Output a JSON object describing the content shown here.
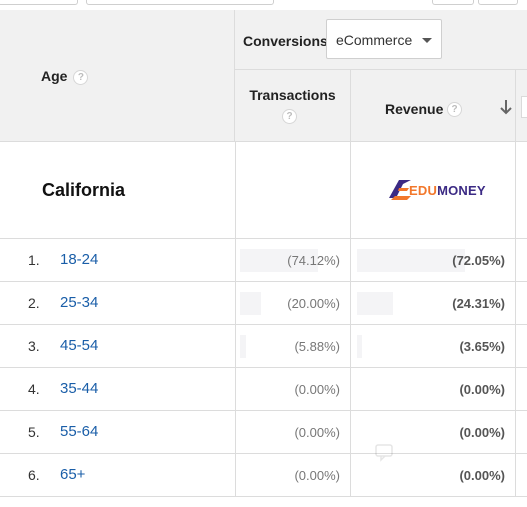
{
  "header": {
    "age_label": "Age",
    "conversions_label": "Conversions",
    "conversions_select": {
      "value": "eCommerce"
    },
    "transactions_label": "Transactions",
    "revenue_label": "Revenue",
    "help_glyph": "?",
    "sort_icon": "arrow-down-icon"
  },
  "summary": {
    "name": "California",
    "logo": {
      "edu": "EDU",
      "money": "MONEY",
      "edu_color": "#f2772b",
      "money_color": "#3b2a84"
    }
  },
  "rows": [
    {
      "rank": "1.",
      "age": "18-24",
      "transactions": "(74.12%)",
      "revenue": "(72.05%)",
      "revenue_share": 0.7205,
      "transactions_share": 0.7412
    },
    {
      "rank": "2.",
      "age": "25-34",
      "transactions": "(20.00%)",
      "revenue": "(24.31%)",
      "revenue_share": 0.2431,
      "transactions_share": 0.2
    },
    {
      "rank": "3.",
      "age": "45-54",
      "transactions": "(5.88%)",
      "revenue": "(3.65%)",
      "revenue_share": 0.0365,
      "transactions_share": 0.0588
    },
    {
      "rank": "4.",
      "age": "35-44",
      "transactions": "(0.00%)",
      "revenue": "(0.00%)",
      "revenue_share": 0,
      "transactions_share": 0
    },
    {
      "rank": "5.",
      "age": "55-64",
      "transactions": "(0.00%)",
      "revenue": "(0.00%)",
      "revenue_share": 0,
      "transactions_share": 0
    },
    {
      "rank": "6.",
      "age": "65+",
      "transactions": "(0.00%)",
      "revenue": "(0.00%)",
      "revenue_share": 0,
      "transactions_share": 0
    }
  ],
  "colors": {
    "link": "#1a5ea8",
    "header_bg": "#f1f1f1",
    "border": "#dcdcdc"
  }
}
